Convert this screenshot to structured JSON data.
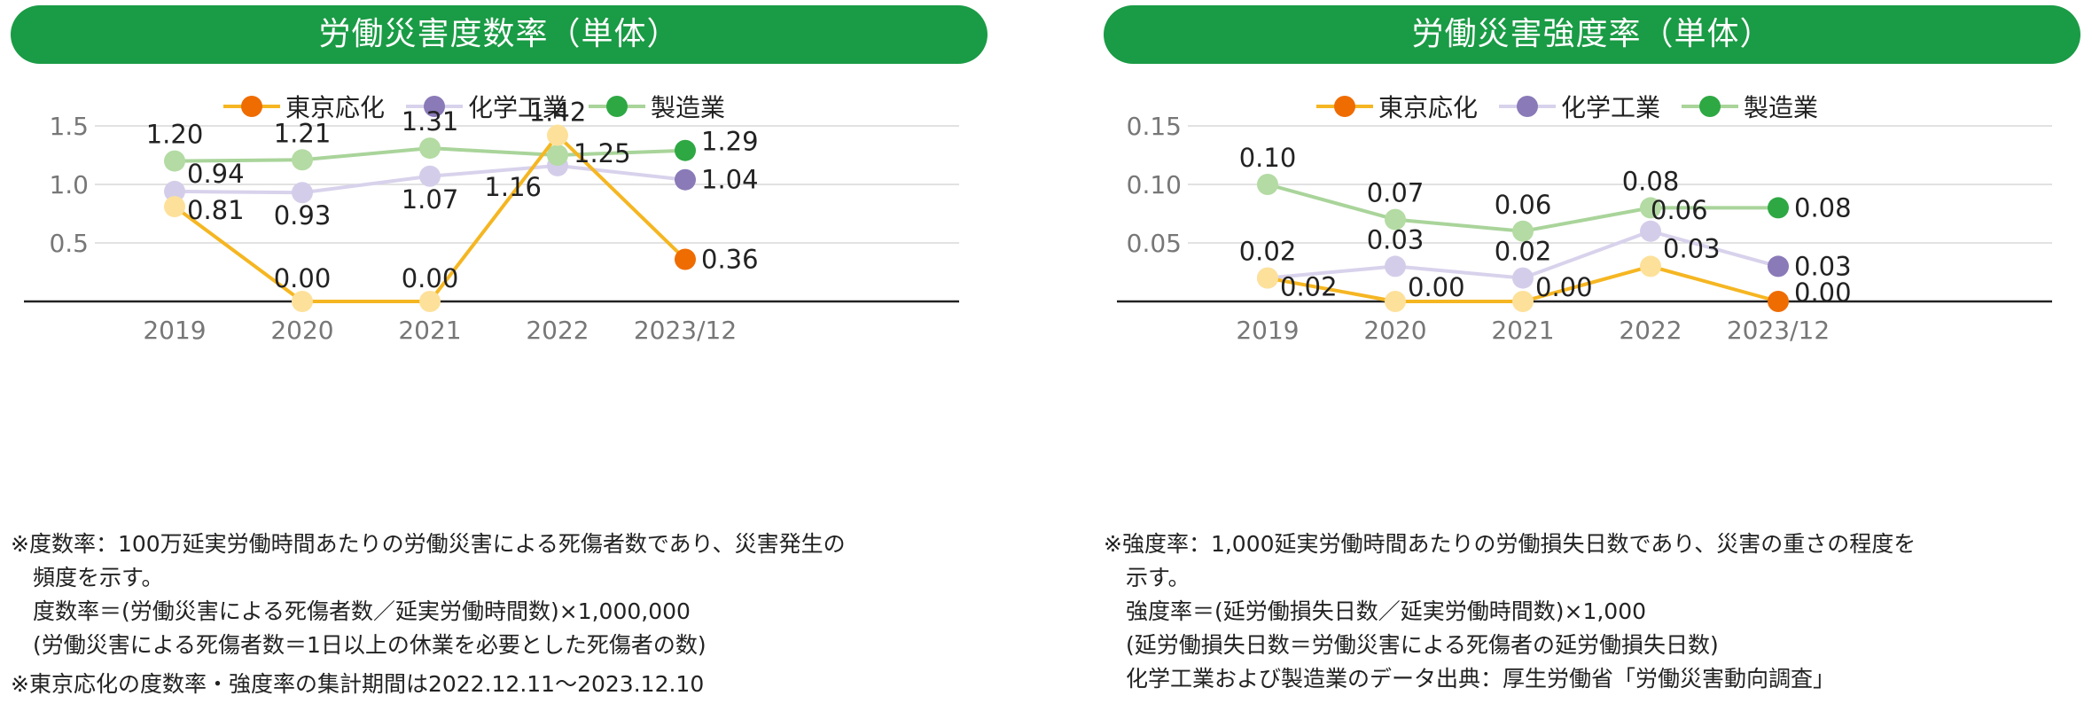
{
  "chart_data": [
    {
      "type": "line",
      "title": "労働災害度数率（単体）",
      "categories": [
        "2019",
        "2020",
        "2021",
        "2022",
        "2023/12"
      ],
      "ylim": [
        0,
        1.5
      ],
      "yticks": [
        "0.5",
        "1.0",
        "1.5"
      ],
      "grid": true,
      "legend": "top",
      "series": [
        {
          "name": "東京応化",
          "color": "#f5b622",
          "marker_light": "#fde19a",
          "marker_last": "#ef6c00",
          "values": [
            0.81,
            0.0,
            0.0,
            1.42,
            0.36
          ],
          "labels": [
            "0.81",
            "0.00",
            "0.00",
            "1.42",
            "0.36"
          ]
        },
        {
          "name": "化学工業",
          "color": "#d8d2ec",
          "marker_light": "#d4cdea",
          "marker_last": "#8a7ab8",
          "values": [
            0.94,
            0.93,
            1.07,
            1.16,
            1.04
          ],
          "labels": [
            "0.94",
            "0.93",
            "1.07",
            "1.16",
            "1.04"
          ]
        },
        {
          "name": "製造業",
          "color": "#a9d49a",
          "marker_light": "#b3dba3",
          "marker_last": "#2ea843",
          "values": [
            1.2,
            1.21,
            1.31,
            1.25,
            1.29
          ],
          "labels": [
            "1.20",
            "1.21",
            "1.31",
            "1.25",
            "1.29"
          ]
        }
      ],
      "notes": [
        "※度数率：100万延実労働時間あたりの労働災害による死傷者数であり、災害発生の",
        "　頻度を示す。",
        "　度数率＝(労働災害による死傷者数／延実労働時間数)×1,000,000",
        "　(労働災害による死傷者数＝1日以上の休業を必要とした死傷者の数)",
        "※東京応化の度数率・強度率の集計期間は2022.12.11～2023.12.10"
      ]
    },
    {
      "type": "line",
      "title": "労働災害強度率（単体）",
      "categories": [
        "2019",
        "2020",
        "2021",
        "2022",
        "2023/12"
      ],
      "ylim": [
        0,
        0.15
      ],
      "yticks": [
        "0.05",
        "0.10",
        "0.15"
      ],
      "grid": true,
      "legend": "top",
      "series": [
        {
          "name": "東京応化",
          "color": "#f5b622",
          "marker_light": "#fde19a",
          "marker_last": "#ef6c00",
          "values": [
            0.02,
            0.0,
            0.0,
            0.03,
            0.0
          ],
          "labels": [
            "0.02",
            "0.00",
            "0.00",
            "0.03",
            "0.00"
          ]
        },
        {
          "name": "化学工業",
          "color": "#d8d2ec",
          "marker_light": "#d4cdea",
          "marker_last": "#8a7ab8",
          "values": [
            0.02,
            0.03,
            0.02,
            0.06,
            0.03
          ],
          "labels": [
            "0.02",
            "0.03",
            "0.02",
            "0.06",
            "0.03"
          ]
        },
        {
          "name": "製造業",
          "color": "#a9d49a",
          "marker_light": "#b3dba3",
          "marker_last": "#2ea843",
          "values": [
            0.1,
            0.07,
            0.06,
            0.08,
            0.08
          ],
          "labels": [
            "0.10",
            "0.07",
            "0.06",
            "0.08",
            "0.08"
          ]
        }
      ],
      "notes": [
        "※強度率：1,000延実労働時間あたりの労働損失日数であり、災害の重さの程度を",
        "　示す。",
        "　強度率＝(延労働損失日数／延実労働時間数)×1,000",
        "　(延労働損失日数＝労働災害による死傷者の延労働損失日数)",
        "　化学工業および製造業のデータ出典：厚生労働省「労働災害動向調査」"
      ]
    }
  ]
}
